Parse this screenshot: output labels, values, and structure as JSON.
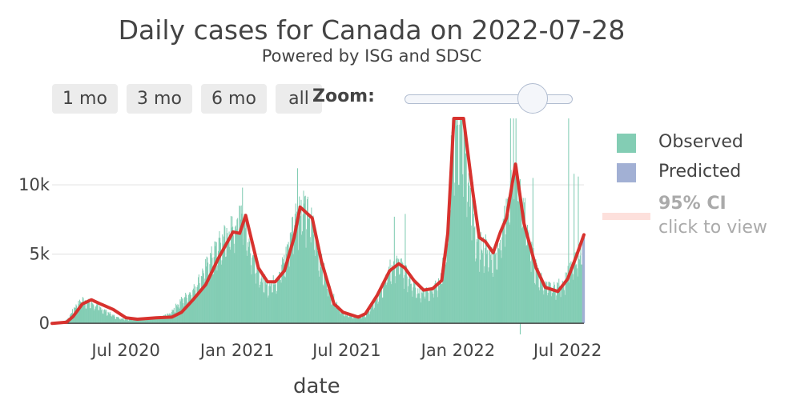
{
  "header": {
    "title": "Daily cases for Canada on 2022-07-28",
    "subtitle": "Powered by ISG and SDSC"
  },
  "range_buttons": [
    "1 mo",
    "3 mo",
    "6 mo",
    "all"
  ],
  "zoom": {
    "label": "Zoom:"
  },
  "legend": {
    "observed": "Observed",
    "predicted": "Predicted",
    "ci_title": "95% CI",
    "ci_subtitle": "click to view"
  },
  "colors": {
    "observed": "#83cdb4",
    "predicted": "#a2b0d4",
    "trend": "#d7322e",
    "ci": "#fde0dc"
  },
  "chart_data": {
    "type": "bar",
    "xlabel": "date",
    "ylabel": "",
    "x_range": [
      "2020-03-01",
      "2022-07-28"
    ],
    "ylim": [
      -800,
      14800
    ],
    "y_ticks": [
      0,
      5000,
      10000
    ],
    "y_tick_labels": [
      "0",
      "5k",
      "10k"
    ],
    "x_ticks": [
      "2020-07-01",
      "2021-01-01",
      "2021-07-01",
      "2022-01-01",
      "2022-07-01"
    ],
    "x_tick_labels": [
      "Jul 2020",
      "Jan 2021",
      "Jul 2021",
      "Jan 2022",
      "Jul 2022"
    ],
    "grid": true,
    "legend_position": "right",
    "series": [
      {
        "name": "Observed",
        "type": "bar",
        "anchors": [
          [
            "2020-03-01",
            0
          ],
          [
            "2020-03-20",
            80
          ],
          [
            "2020-03-28",
            400
          ],
          [
            "2020-04-05",
            1100
          ],
          [
            "2020-04-20",
            1800
          ],
          [
            "2020-05-05",
            1500
          ],
          [
            "2020-05-25",
            1000
          ],
          [
            "2020-06-15",
            450
          ],
          [
            "2020-07-01",
            300
          ],
          [
            "2020-08-01",
            350
          ],
          [
            "2020-08-25",
            450
          ],
          [
            "2020-09-10",
            700
          ],
          [
            "2020-10-01",
            1800
          ],
          [
            "2020-10-20",
            2500
          ],
          [
            "2020-11-15",
            4700
          ],
          [
            "2020-12-10",
            6600
          ],
          [
            "2020-12-25",
            7200
          ],
          [
            "2021-01-08",
            8800
          ],
          [
            "2021-01-20",
            6200
          ],
          [
            "2021-02-05",
            3600
          ],
          [
            "2021-02-20",
            3000
          ],
          [
            "2021-03-05",
            3200
          ],
          [
            "2021-03-20",
            4800
          ],
          [
            "2021-04-05",
            8000
          ],
          [
            "2021-04-18",
            9200
          ],
          [
            "2021-05-05",
            7500
          ],
          [
            "2021-05-20",
            4500
          ],
          [
            "2021-06-05",
            2200
          ],
          [
            "2021-06-25",
            700
          ],
          [
            "2021-07-15",
            450
          ],
          [
            "2021-08-01",
            600
          ],
          [
            "2021-08-20",
            2000
          ],
          [
            "2021-09-10",
            4200
          ],
          [
            "2021-09-25",
            4600
          ],
          [
            "2021-10-10",
            3500
          ],
          [
            "2021-10-25",
            2400
          ],
          [
            "2021-11-15",
            2500
          ],
          [
            "2021-12-01",
            3100
          ],
          [
            "2021-12-15",
            6500
          ],
          [
            "2021-12-22",
            14500
          ],
          [
            "2022-01-02",
            15500
          ],
          [
            "2022-01-10",
            14000
          ],
          [
            "2022-01-20",
            9500
          ],
          [
            "2022-02-01",
            6000
          ],
          [
            "2022-02-15",
            5800
          ],
          [
            "2022-02-28",
            5000
          ],
          [
            "2022-03-15",
            7000
          ],
          [
            "2022-03-25",
            9000
          ],
          [
            "2022-04-05",
            12000
          ],
          [
            "2022-04-15",
            10000
          ],
          [
            "2022-04-25",
            7000
          ],
          [
            "2022-05-10",
            4000
          ],
          [
            "2022-05-25",
            2800
          ],
          [
            "2022-06-10",
            2700
          ],
          [
            "2022-06-25",
            3200
          ],
          [
            "2022-07-10",
            4500
          ],
          [
            "2022-07-28",
            6000
          ]
        ],
        "spikes": [
          [
            "2021-01-09",
            9800
          ],
          [
            "2021-04-10",
            11200
          ],
          [
            "2021-09-17",
            7700
          ],
          [
            "2021-10-05",
            7900
          ],
          [
            "2022-01-25",
            10200
          ],
          [
            "2022-03-28",
            15500
          ],
          [
            "2022-04-02",
            16000
          ],
          [
            "2022-04-06",
            15000
          ],
          [
            "2022-05-04",
            10500
          ],
          [
            "2022-07-02",
            14800
          ],
          [
            "2022-07-11",
            10800
          ],
          [
            "2022-07-18",
            10600
          ],
          [
            "2022-04-13",
            -800
          ]
        ]
      },
      {
        "name": "Predicted",
        "type": "bar",
        "anchors": [
          [
            "2022-07-25",
            5800
          ],
          [
            "2022-07-28",
            6200
          ]
        ]
      },
      {
        "name": "trend",
        "type": "line",
        "points": [
          [
            "2020-03-01",
            0
          ],
          [
            "2020-03-25",
            80
          ],
          [
            "2020-04-05",
            500
          ],
          [
            "2020-04-20",
            1400
          ],
          [
            "2020-05-05",
            1700
          ],
          [
            "2020-05-20",
            1400
          ],
          [
            "2020-06-10",
            1000
          ],
          [
            "2020-07-01",
            400
          ],
          [
            "2020-07-20",
            300
          ],
          [
            "2020-08-20",
            400
          ],
          [
            "2020-09-15",
            450
          ],
          [
            "2020-10-01",
            800
          ],
          [
            "2020-10-20",
            1700
          ],
          [
            "2020-11-10",
            2800
          ],
          [
            "2020-12-01",
            4700
          ],
          [
            "2020-12-25",
            6600
          ],
          [
            "2021-01-05",
            6500
          ],
          [
            "2021-01-15",
            7800
          ],
          [
            "2021-02-05",
            4000
          ],
          [
            "2021-02-20",
            3000
          ],
          [
            "2021-03-05",
            3000
          ],
          [
            "2021-03-20",
            3800
          ],
          [
            "2021-04-05",
            6200
          ],
          [
            "2021-04-15",
            8400
          ],
          [
            "2021-05-05",
            7600
          ],
          [
            "2021-05-20",
            4500
          ],
          [
            "2021-06-10",
            1400
          ],
          [
            "2021-06-25",
            800
          ],
          [
            "2021-07-20",
            450
          ],
          [
            "2021-08-01",
            700
          ],
          [
            "2021-08-20",
            2000
          ],
          [
            "2021-09-10",
            3800
          ],
          [
            "2021-09-25",
            4300
          ],
          [
            "2021-10-05",
            4000
          ],
          [
            "2021-10-20",
            3100
          ],
          [
            "2021-11-05",
            2400
          ],
          [
            "2021-11-20",
            2500
          ],
          [
            "2021-12-05",
            3100
          ],
          [
            "2021-12-15",
            6500
          ],
          [
            "2021-12-25",
            14800
          ],
          [
            "2022-01-10",
            15000
          ],
          [
            "2022-01-25",
            9600
          ],
          [
            "2022-02-05",
            6200
          ],
          [
            "2022-02-15",
            5900
          ],
          [
            "2022-02-28",
            5100
          ],
          [
            "2022-03-12",
            6600
          ],
          [
            "2022-03-22",
            7600
          ],
          [
            "2022-04-06",
            11500
          ],
          [
            "2022-04-20",
            7200
          ],
          [
            "2022-05-10",
            4000
          ],
          [
            "2022-05-25",
            2600
          ],
          [
            "2022-06-15",
            2300
          ],
          [
            "2022-07-01",
            3200
          ],
          [
            "2022-07-15",
            4800
          ],
          [
            "2022-07-28",
            6400
          ]
        ]
      }
    ]
  }
}
